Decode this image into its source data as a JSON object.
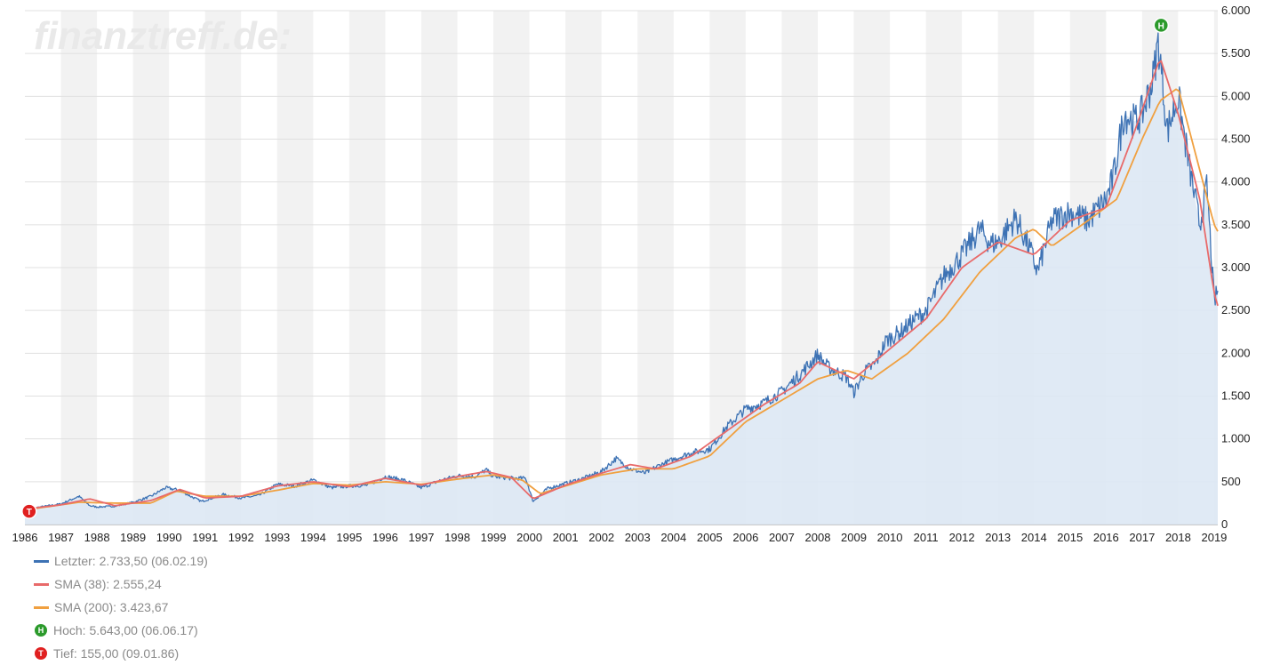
{
  "watermark": "finanztreff.de:",
  "chart_data": {
    "type": "line",
    "x_axis": {
      "range": [
        1986.0,
        2019.1
      ],
      "ticks": [
        "1986",
        "1987",
        "1988",
        "1989",
        "1990",
        "1991",
        "1992",
        "1993",
        "1994",
        "1995",
        "1996",
        "1997",
        "1998",
        "1999",
        "2000",
        "2001",
        "2002",
        "2003",
        "2004",
        "2005",
        "2006",
        "2007",
        "2008",
        "2009",
        "2010",
        "2011",
        "2012",
        "2013",
        "2014",
        "2015",
        "2016",
        "2017",
        "2018",
        "2019"
      ]
    },
    "y_axis": {
      "range": [
        0,
        6000
      ],
      "ticks": [
        {
          "v": 0,
          "label": "0"
        },
        {
          "v": 500,
          "label": "500"
        },
        {
          "v": 1000,
          "label": "1.000"
        },
        {
          "v": 1500,
          "label": "1.500"
        },
        {
          "v": 2000,
          "label": "2.000"
        },
        {
          "v": 2500,
          "label": "2.500"
        },
        {
          "v": 3000,
          "label": "3.000"
        },
        {
          "v": 3500,
          "label": "3.500"
        },
        {
          "v": 4000,
          "label": "4.000"
        },
        {
          "v": 4500,
          "label": "4.500"
        },
        {
          "v": 5000,
          "label": "5.000"
        },
        {
          "v": 5500,
          "label": "5.500"
        },
        {
          "v": 6000,
          "label": "6.000"
        }
      ],
      "position": "right"
    },
    "grid": true,
    "legend_placement": "bottom-left",
    "series": [
      {
        "name": "Letzter",
        "color": "#3d72b4",
        "x": [
          1986.0,
          1986.5,
          1987.0,
          1987.5,
          1987.8,
          1988.0,
          1988.5,
          1989.0,
          1989.5,
          1989.9,
          1990.3,
          1990.6,
          1990.9,
          1991.5,
          1992.0,
          1992.5,
          1993.0,
          1993.5,
          1994.0,
          1994.5,
          1995.0,
          1995.5,
          1996.0,
          1996.5,
          1997.0,
          1997.5,
          1998.0,
          1998.5,
          1998.8,
          1999.0,
          1999.5,
          1999.9,
          2000.1,
          2000.5,
          2001.0,
          2001.5,
          2002.0,
          2002.4,
          2002.8,
          2003.2,
          2003.6,
          2004.0,
          2004.5,
          2005.0,
          2005.5,
          2006.0,
          2006.5,
          2007.0,
          2007.5,
          2008.0,
          2008.3,
          2008.8,
          2009.0,
          2009.3,
          2009.6,
          2009.9,
          2010.3,
          2010.7,
          2011.0,
          2011.5,
          2012.0,
          2012.5,
          2012.8,
          2013.0,
          2013.5,
          2013.9,
          2014.1,
          2014.5,
          2015.0,
          2015.5,
          2016.0,
          2016.2,
          2016.5,
          2016.8,
          2017.0,
          2017.3,
          2017.45,
          2017.7,
          2018.0,
          2018.3,
          2018.6,
          2018.8,
          2019.0,
          2019.1
        ],
        "values": [
          175,
          210,
          240,
          330,
          220,
          205,
          215,
          260,
          330,
          430,
          400,
          330,
          270,
          350,
          310,
          340,
          470,
          450,
          520,
          430,
          450,
          460,
          560,
          520,
          430,
          510,
          570,
          560,
          640,
          560,
          540,
          540,
          270,
          420,
          480,
          540,
          620,
          770,
          650,
          600,
          690,
          760,
          840,
          880,
          1150,
          1350,
          1420,
          1550,
          1750,
          1980,
          1830,
          1720,
          1540,
          1780,
          1880,
          2150,
          2250,
          2400,
          2490,
          2900,
          3150,
          3450,
          3280,
          3300,
          3580,
          3200,
          2950,
          3550,
          3650,
          3550,
          3800,
          4050,
          4800,
          4700,
          4800,
          5200,
          5643,
          4600,
          5000,
          4200,
          3500,
          3950,
          2600,
          2733.5
        ]
      },
      {
        "name": "SMA (38)",
        "color": "#e86a6a",
        "x": [
          1986.0,
          1987.0,
          1987.8,
          1988.5,
          1989.5,
          1990.3,
          1991.0,
          1992.0,
          1993.0,
          1994.0,
          1995.0,
          1996.0,
          1997.0,
          1998.0,
          1998.8,
          1999.5,
          2000.1,
          2001.0,
          2002.0,
          2002.8,
          2003.5,
          2004.5,
          2005.5,
          2006.5,
          2007.5,
          2008.0,
          2009.0,
          2010.0,
          2011.0,
          2012.0,
          2013.0,
          2014.0,
          2015.0,
          2016.0,
          2016.8,
          2017.5,
          2018.0,
          2018.6,
          2019.0,
          2019.1
        ],
        "values": [
          180,
          230,
          300,
          220,
          280,
          410,
          310,
          330,
          450,
          500,
          440,
          540,
          460,
          560,
          620,
          550,
          300,
          460,
          600,
          700,
          650,
          800,
          1100,
          1400,
          1650,
          1900,
          1700,
          2050,
          2400,
          3000,
          3300,
          3150,
          3550,
          3700,
          4600,
          5450,
          4800,
          3800,
          2700,
          2555.24
        ]
      },
      {
        "name": "SMA (200)",
        "color": "#f0a040",
        "x": [
          1986.0,
          1987.5,
          1988.5,
          1989.5,
          1990.2,
          1991.0,
          1992.0,
          1993.0,
          1994.0,
          1995.0,
          1996.0,
          1997.0,
          1998.0,
          1999.0,
          1999.8,
          2000.3,
          2001.0,
          2002.0,
          2003.0,
          2004.0,
          2005.0,
          2006.0,
          2007.0,
          2008.0,
          2008.8,
          2009.5,
          2010.5,
          2011.5,
          2012.5,
          2013.5,
          2014.0,
          2014.5,
          2015.5,
          2016.3,
          2017.0,
          2017.5,
          2018.0,
          2018.5,
          2019.0,
          2019.1
        ],
        "values": [
          170,
          260,
          250,
          250,
          390,
          330,
          330,
          400,
          480,
          460,
          500,
          470,
          530,
          580,
          520,
          360,
          450,
          580,
          650,
          650,
          800,
          1200,
          1450,
          1700,
          1800,
          1700,
          2000,
          2400,
          2950,
          3350,
          3450,
          3250,
          3550,
          3800,
          4500,
          4950,
          5100,
          4300,
          3500,
          3423.67
        ]
      }
    ],
    "markers": [
      {
        "name": "Hoch",
        "label": "H",
        "x": 2017.43,
        "value": 5643,
        "color": "#2b9a2b"
      },
      {
        "name": "Tief",
        "label": "T",
        "x": 1986.02,
        "value": 155,
        "color": "#e02020"
      }
    ]
  },
  "legend": [
    {
      "kind": "line",
      "color": "#3d72b4",
      "text": "Letzter: 2.733,50 (06.02.19)"
    },
    {
      "kind": "line",
      "color": "#e86a6a",
      "text": "SMA (38): 2.555,24"
    },
    {
      "kind": "line",
      "color": "#f0a040",
      "text": "SMA (200): 3.423,67"
    },
    {
      "kind": "marker",
      "color": "#2b9a2b",
      "symbol": "H",
      "text": "Hoch: 5.643,00 (06.06.17)"
    },
    {
      "kind": "marker",
      "color": "#e02020",
      "symbol": "T",
      "text": "Tief: 155,00 (09.01.86)"
    }
  ]
}
